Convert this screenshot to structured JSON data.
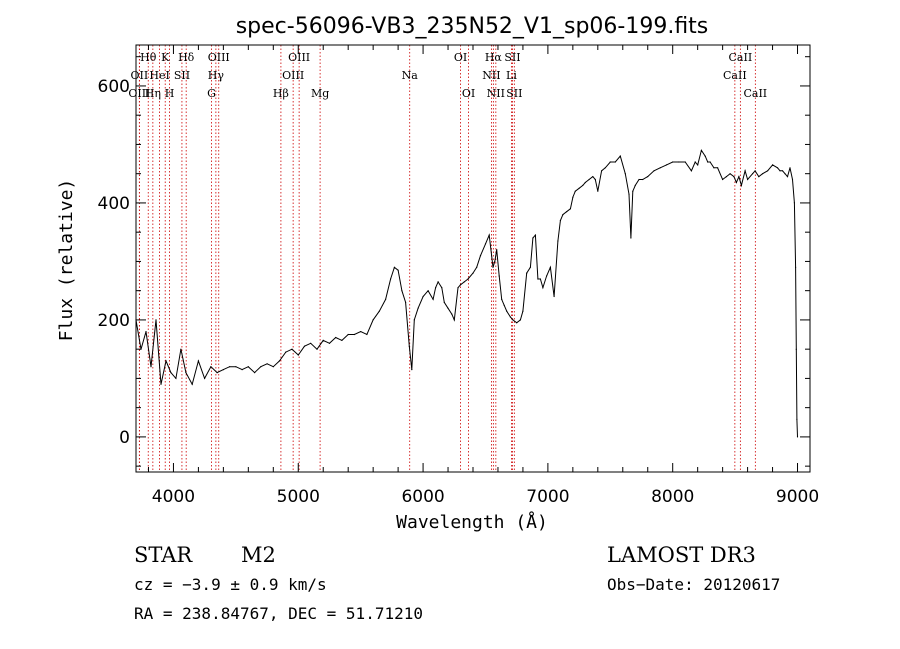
{
  "chart_data": {
    "type": "line",
    "title": "spec-56096-VB3_235N52_V1_sp06-199.fits",
    "xlabel": "Wavelength (Å)",
    "ylabel": "Flux (relative)",
    "xlim": [
      3700,
      9100
    ],
    "ylim": [
      -60,
      670
    ],
    "xticks": [
      4000,
      5000,
      6000,
      7000,
      8000,
      9000
    ],
    "yticks": [
      0,
      200,
      400,
      600
    ],
    "grid": false,
    "line_color": "#000000",
    "marker_color": "#cc0000",
    "series": [
      {
        "name": "spectrum",
        "x": [
          3700,
          3740,
          3780,
          3820,
          3860,
          3900,
          3940,
          3980,
          4020,
          4060,
          4100,
          4150,
          4200,
          4250,
          4300,
          4350,
          4400,
          4450,
          4500,
          4550,
          4600,
          4650,
          4700,
          4750,
          4800,
          4850,
          4900,
          4950,
          5000,
          5050,
          5100,
          5150,
          5200,
          5250,
          5300,
          5350,
          5400,
          5450,
          5500,
          5550,
          5600,
          5650,
          5700,
          5740,
          5770,
          5800,
          5830,
          5860,
          5890,
          5910,
          5930,
          5960,
          6000,
          6040,
          6080,
          6100,
          6120,
          6150,
          6170,
          6200,
          6230,
          6250,
          6280,
          6300,
          6330,
          6360,
          6400,
          6430,
          6460,
          6500,
          6530,
          6560,
          6575,
          6590,
          6610,
          6630,
          6650,
          6670,
          6700,
          6720,
          6750,
          6780,
          6800,
          6830,
          6860,
          6880,
          6900,
          6920,
          6940,
          6960,
          6990,
          7020,
          7050,
          7080,
          7100,
          7120,
          7150,
          7180,
          7200,
          7220,
          7250,
          7280,
          7300,
          7330,
          7360,
          7380,
          7400,
          7430,
          7460,
          7500,
          7540,
          7580,
          7620,
          7650,
          7665,
          7680,
          7700,
          7730,
          7760,
          7800,
          7850,
          7900,
          7950,
          8000,
          8050,
          8100,
          8150,
          8180,
          8200,
          8230,
          8260,
          8280,
          8300,
          8330,
          8360,
          8400,
          8430,
          8460,
          8490,
          8510,
          8530,
          8550,
          8580,
          8600,
          8640,
          8660,
          8690,
          8720,
          8760,
          8800,
          8840,
          8860,
          8880,
          8900,
          8920,
          8940,
          8960,
          8975,
          8985,
          8990,
          8995,
          9000
        ],
        "values": [
          200,
          150,
          180,
          120,
          200,
          90,
          130,
          110,
          100,
          150,
          110,
          90,
          130,
          100,
          120,
          110,
          115,
          120,
          120,
          115,
          120,
          110,
          120,
          125,
          120,
          130,
          145,
          150,
          140,
          155,
          160,
          150,
          165,
          160,
          170,
          165,
          175,
          175,
          180,
          175,
          200,
          215,
          235,
          270,
          290,
          285,
          250,
          230,
          155,
          115,
          200,
          220,
          240,
          250,
          235,
          255,
          265,
          255,
          230,
          220,
          210,
          200,
          255,
          260,
          265,
          270,
          280,
          290,
          310,
          330,
          345,
          290,
          300,
          320,
          275,
          235,
          225,
          215,
          205,
          200,
          195,
          200,
          215,
          280,
          290,
          340,
          345,
          270,
          270,
          255,
          275,
          290,
          240,
          335,
          370,
          380,
          385,
          390,
          410,
          420,
          425,
          430,
          435,
          440,
          445,
          440,
          420,
          455,
          460,
          470,
          470,
          480,
          450,
          415,
          340,
          420,
          430,
          440,
          440,
          445,
          455,
          460,
          465,
          470,
          470,
          470,
          455,
          470,
          465,
          490,
          480,
          470,
          470,
          460,
          460,
          440,
          445,
          450,
          445,
          435,
          445,
          430,
          455,
          440,
          450,
          455,
          445,
          450,
          455,
          465,
          460,
          455,
          455,
          450,
          445,
          460,
          440,
          400,
          290,
          150,
          30,
          0
        ]
      }
    ],
    "line_markers": [
      {
        "label": "Hθ",
        "x": 3798,
        "row": 0
      },
      {
        "label": "OII",
        "x": 3727,
        "row": 1
      },
      {
        "label": "OIII",
        "x": 3727,
        "row": 2
      },
      {
        "label": "K",
        "x": 3934,
        "row": 0
      },
      {
        "label": "HeI",
        "x": 3889,
        "row": 1
      },
      {
        "label": "Hη",
        "x": 3835,
        "row": 2
      },
      {
        "label": "SII",
        "x": 4068,
        "row": 1
      },
      {
        "label": "H",
        "x": 3969,
        "row": 2
      },
      {
        "label": "Hδ",
        "x": 4102,
        "row": 0
      },
      {
        "label": "OIII",
        "x": 4363,
        "row": 0
      },
      {
        "label": "Hγ",
        "x": 4340,
        "row": 1
      },
      {
        "label": "G",
        "x": 4305,
        "row": 2
      },
      {
        "label": "Hβ",
        "x": 4861,
        "row": 2
      },
      {
        "label": "OIII",
        "x": 5007,
        "row": 0
      },
      {
        "label": "OIII",
        "x": 4959,
        "row": 1
      },
      {
        "label": "Mg",
        "x": 5175,
        "row": 2
      },
      {
        "label": "Na",
        "x": 5893,
        "row": 1
      },
      {
        "label": "OI",
        "x": 6300,
        "row": 0
      },
      {
        "label": "OI",
        "x": 6364,
        "row": 2
      },
      {
        "label": "Hα",
        "x": 6563,
        "row": 0
      },
      {
        "label": "NII",
        "x": 6548,
        "row": 1
      },
      {
        "label": "NII",
        "x": 6583,
        "row": 2
      },
      {
        "label": "SII",
        "x": 6716,
        "row": 0
      },
      {
        "label": "Li",
        "x": 6708,
        "row": 1
      },
      {
        "label": "SII",
        "x": 6731,
        "row": 2
      },
      {
        "label": "CaII",
        "x": 8542,
        "row": 0
      },
      {
        "label": "CaII",
        "x": 8498,
        "row": 1
      },
      {
        "label": "CaII",
        "x": 8662,
        "row": 2
      }
    ]
  },
  "info": {
    "class_label": "STAR",
    "subclass": "M2",
    "survey": "LAMOST DR3",
    "cz": "cz = −3.9 ± 0.9 km/s",
    "obs_date": "Obs−Date: 20120617",
    "radec": "RA = 238.84767, DEC =  51.71210"
  }
}
